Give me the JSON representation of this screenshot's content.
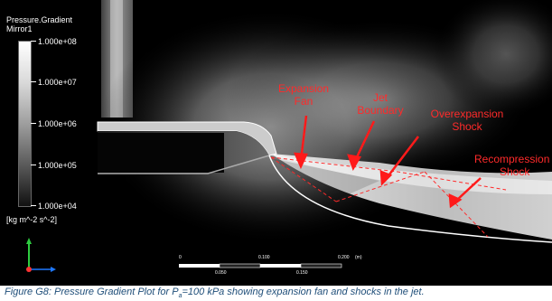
{
  "legend": {
    "title_line1": "Pressure.Gradient",
    "title_line2": "Mirror1",
    "ticks": [
      "1.000e+08",
      "1.000e+07",
      "1.000e+06",
      "1.000e+05",
      "1.000e+04"
    ],
    "unit": "[kg m^-2 s^-2]"
  },
  "annotations": {
    "expansion_fan_line1": "Expansion",
    "expansion_fan_line2": "Fan",
    "jet_boundary_line1": "Jet",
    "jet_boundary_line2": "Boundary",
    "overexpansion_line1": "Overexpansion",
    "overexpansion_line2": "Shock",
    "recompression_line1": "Recompression",
    "recompression_line2": "Shock"
  },
  "scale_bar": {
    "tick_0": "0",
    "tick_0100": "0.100",
    "tick_0200": "0.200",
    "unit": "(m)",
    "tick_0050": "0.050",
    "tick_0150": "0.150"
  },
  "caption": {
    "prefix": "Figure G8: Pressure Gradient Plot for P",
    "subscript": "a",
    "suffix": "=100 kPa showing expansion fan and shocks in the jet."
  },
  "colors": {
    "annotation_red": "#ff2a2a",
    "caption_blue": "#1f4e79",
    "axis_green": "#2ecc40",
    "axis_blue": "#1e78ff"
  }
}
